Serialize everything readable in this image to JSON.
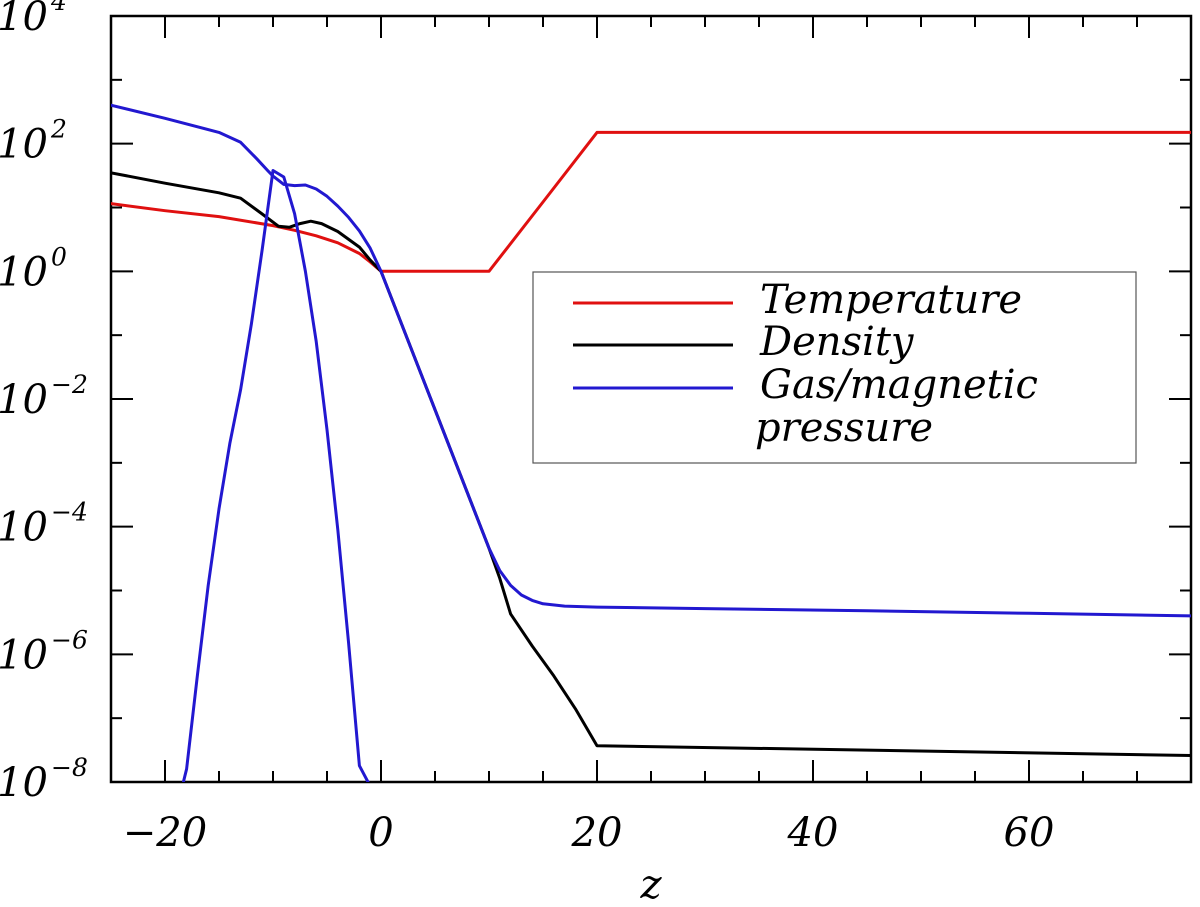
{
  "chart_data": {
    "type": "line",
    "xlabel": "z",
    "ylabel": "",
    "xlim": [
      -25,
      75
    ],
    "ylim": [
      1e-08,
      10000
    ],
    "yscale": "log",
    "grid": false,
    "legend_position": "center-right",
    "x_ticks": [
      {
        "value": -20,
        "label": "−20"
      },
      {
        "value": 0,
        "label": "0"
      },
      {
        "value": 20,
        "label": "20"
      },
      {
        "value": 40,
        "label": "40"
      },
      {
        "value": 60,
        "label": "60"
      }
    ],
    "y_ticks": [
      {
        "value": 1e-08,
        "base": "10",
        "exp": "−8"
      },
      {
        "value": 1e-06,
        "base": "10",
        "exp": "−6"
      },
      {
        "value": 0.0001,
        "base": "10",
        "exp": "−4"
      },
      {
        "value": 0.01,
        "base": "10",
        "exp": "−2"
      },
      {
        "value": 1,
        "base": "10",
        "exp": "0"
      },
      {
        "value": 100,
        "base": "10",
        "exp": "2"
      },
      {
        "value": 10000,
        "base": "10",
        "exp": "4"
      }
    ],
    "series": [
      {
        "name": "Temperature",
        "color": "#e01010",
        "x": [
          -25,
          -20,
          -15,
          -10,
          -8,
          -6,
          -4,
          -2,
          -1,
          0,
          5,
          10,
          15,
          20,
          75
        ],
        "y": [
          11.5,
          8.9,
          7.2,
          5.2,
          4.4,
          3.6,
          2.8,
          1.9,
          1.4,
          1.0,
          1.0,
          1.0,
          12.2,
          150,
          150
        ]
      },
      {
        "name": "Density",
        "color": "#000000",
        "x": [
          -25,
          -20,
          -15,
          -13,
          -11,
          -9.5,
          -8.5,
          -7.5,
          -6.5,
          -5.5,
          -4,
          -2,
          -1,
          0,
          5,
          10,
          11,
          12,
          14,
          16,
          18,
          20,
          75
        ],
        "y": [
          35,
          24,
          17,
          14,
          7.9,
          5.1,
          4.9,
          5.6,
          6.1,
          5.6,
          4.2,
          2.4,
          1.5,
          1.0,
          0.0068,
          4.6e-05,
          1.55e-05,
          4.3e-06,
          1.35e-06,
          4.6e-07,
          1.4e-07,
          3.7e-08,
          2.6e-08
        ]
      },
      {
        "name": "Gas/magnetic pressure",
        "color": "#2218d0",
        "x": [
          -25,
          -20,
          -15,
          -13,
          -11.5,
          -10.5,
          -10,
          -9,
          -8,
          -7,
          -6,
          -5,
          -4,
          -3,
          -2,
          -1,
          0,
          5,
          10,
          11,
          12,
          13,
          14,
          15,
          17,
          20,
          30,
          45,
          60,
          75
        ],
        "y": [
          400,
          250,
          150,
          105,
          58,
          38,
          31,
          23,
          22,
          22.5,
          19.5,
          15,
          10.5,
          7,
          4.3,
          2.3,
          1.0,
          0.0068,
          4.6e-05,
          2.05e-05,
          1.2e-05,
          8.5e-06,
          7e-06,
          6.2e-06,
          5.7e-06,
          5.5e-06,
          5.2e-06,
          4.8e-06,
          4.4e-06,
          4e-06
        ]
      },
      {
        "name": "",
        "color": "#2218d0",
        "x": [
          -18.8,
          -18.3,
          -18,
          -17,
          -16,
          -15,
          -14,
          -13,
          -12,
          -11,
          -10,
          -9,
          -8,
          -7,
          -6,
          -5,
          -4,
          -3,
          -2,
          -1.2,
          -1
        ],
        "y": [
          3e-09,
          1e-08,
          1.6e-08,
          4.7e-07,
          1.2e-05,
          0.00019,
          0.002,
          0.014,
          0.15,
          2.2,
          38,
          30,
          8,
          1.0,
          0.08,
          0.0033,
          9e-05,
          1.5e-06,
          1.8e-08,
          1e-08,
          6e-09
        ]
      }
    ],
    "legend": [
      {
        "label": "Temperature",
        "color": "#e01010"
      },
      {
        "label": "Density",
        "color": "#000000"
      },
      {
        "label": "Gas/magnetic",
        "label2": "pressure",
        "color": "#2218d0"
      }
    ]
  }
}
